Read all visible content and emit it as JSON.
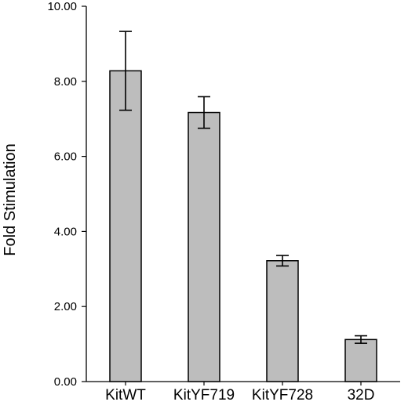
{
  "chart_data": {
    "type": "bar",
    "title": "",
    "xlabel": "",
    "ylabel": "Fold Stimulation",
    "categories": [
      "KitWT",
      "KitYF719",
      "KitYF728",
      "32D"
    ],
    "series": [
      {
        "values": [
          8.28,
          7.17,
          3.22,
          1.12
        ],
        "error": [
          1.05,
          0.42,
          0.14,
          0.1
        ]
      }
    ],
    "ylim": [
      0,
      10
    ],
    "yticks": [
      "0.00",
      "2.00",
      "4.00",
      "6.00",
      "8.00",
      "10.00"
    ],
    "grid": false,
    "colors": {
      "bar": "#bdbdbd",
      "outline": "#000000"
    }
  }
}
